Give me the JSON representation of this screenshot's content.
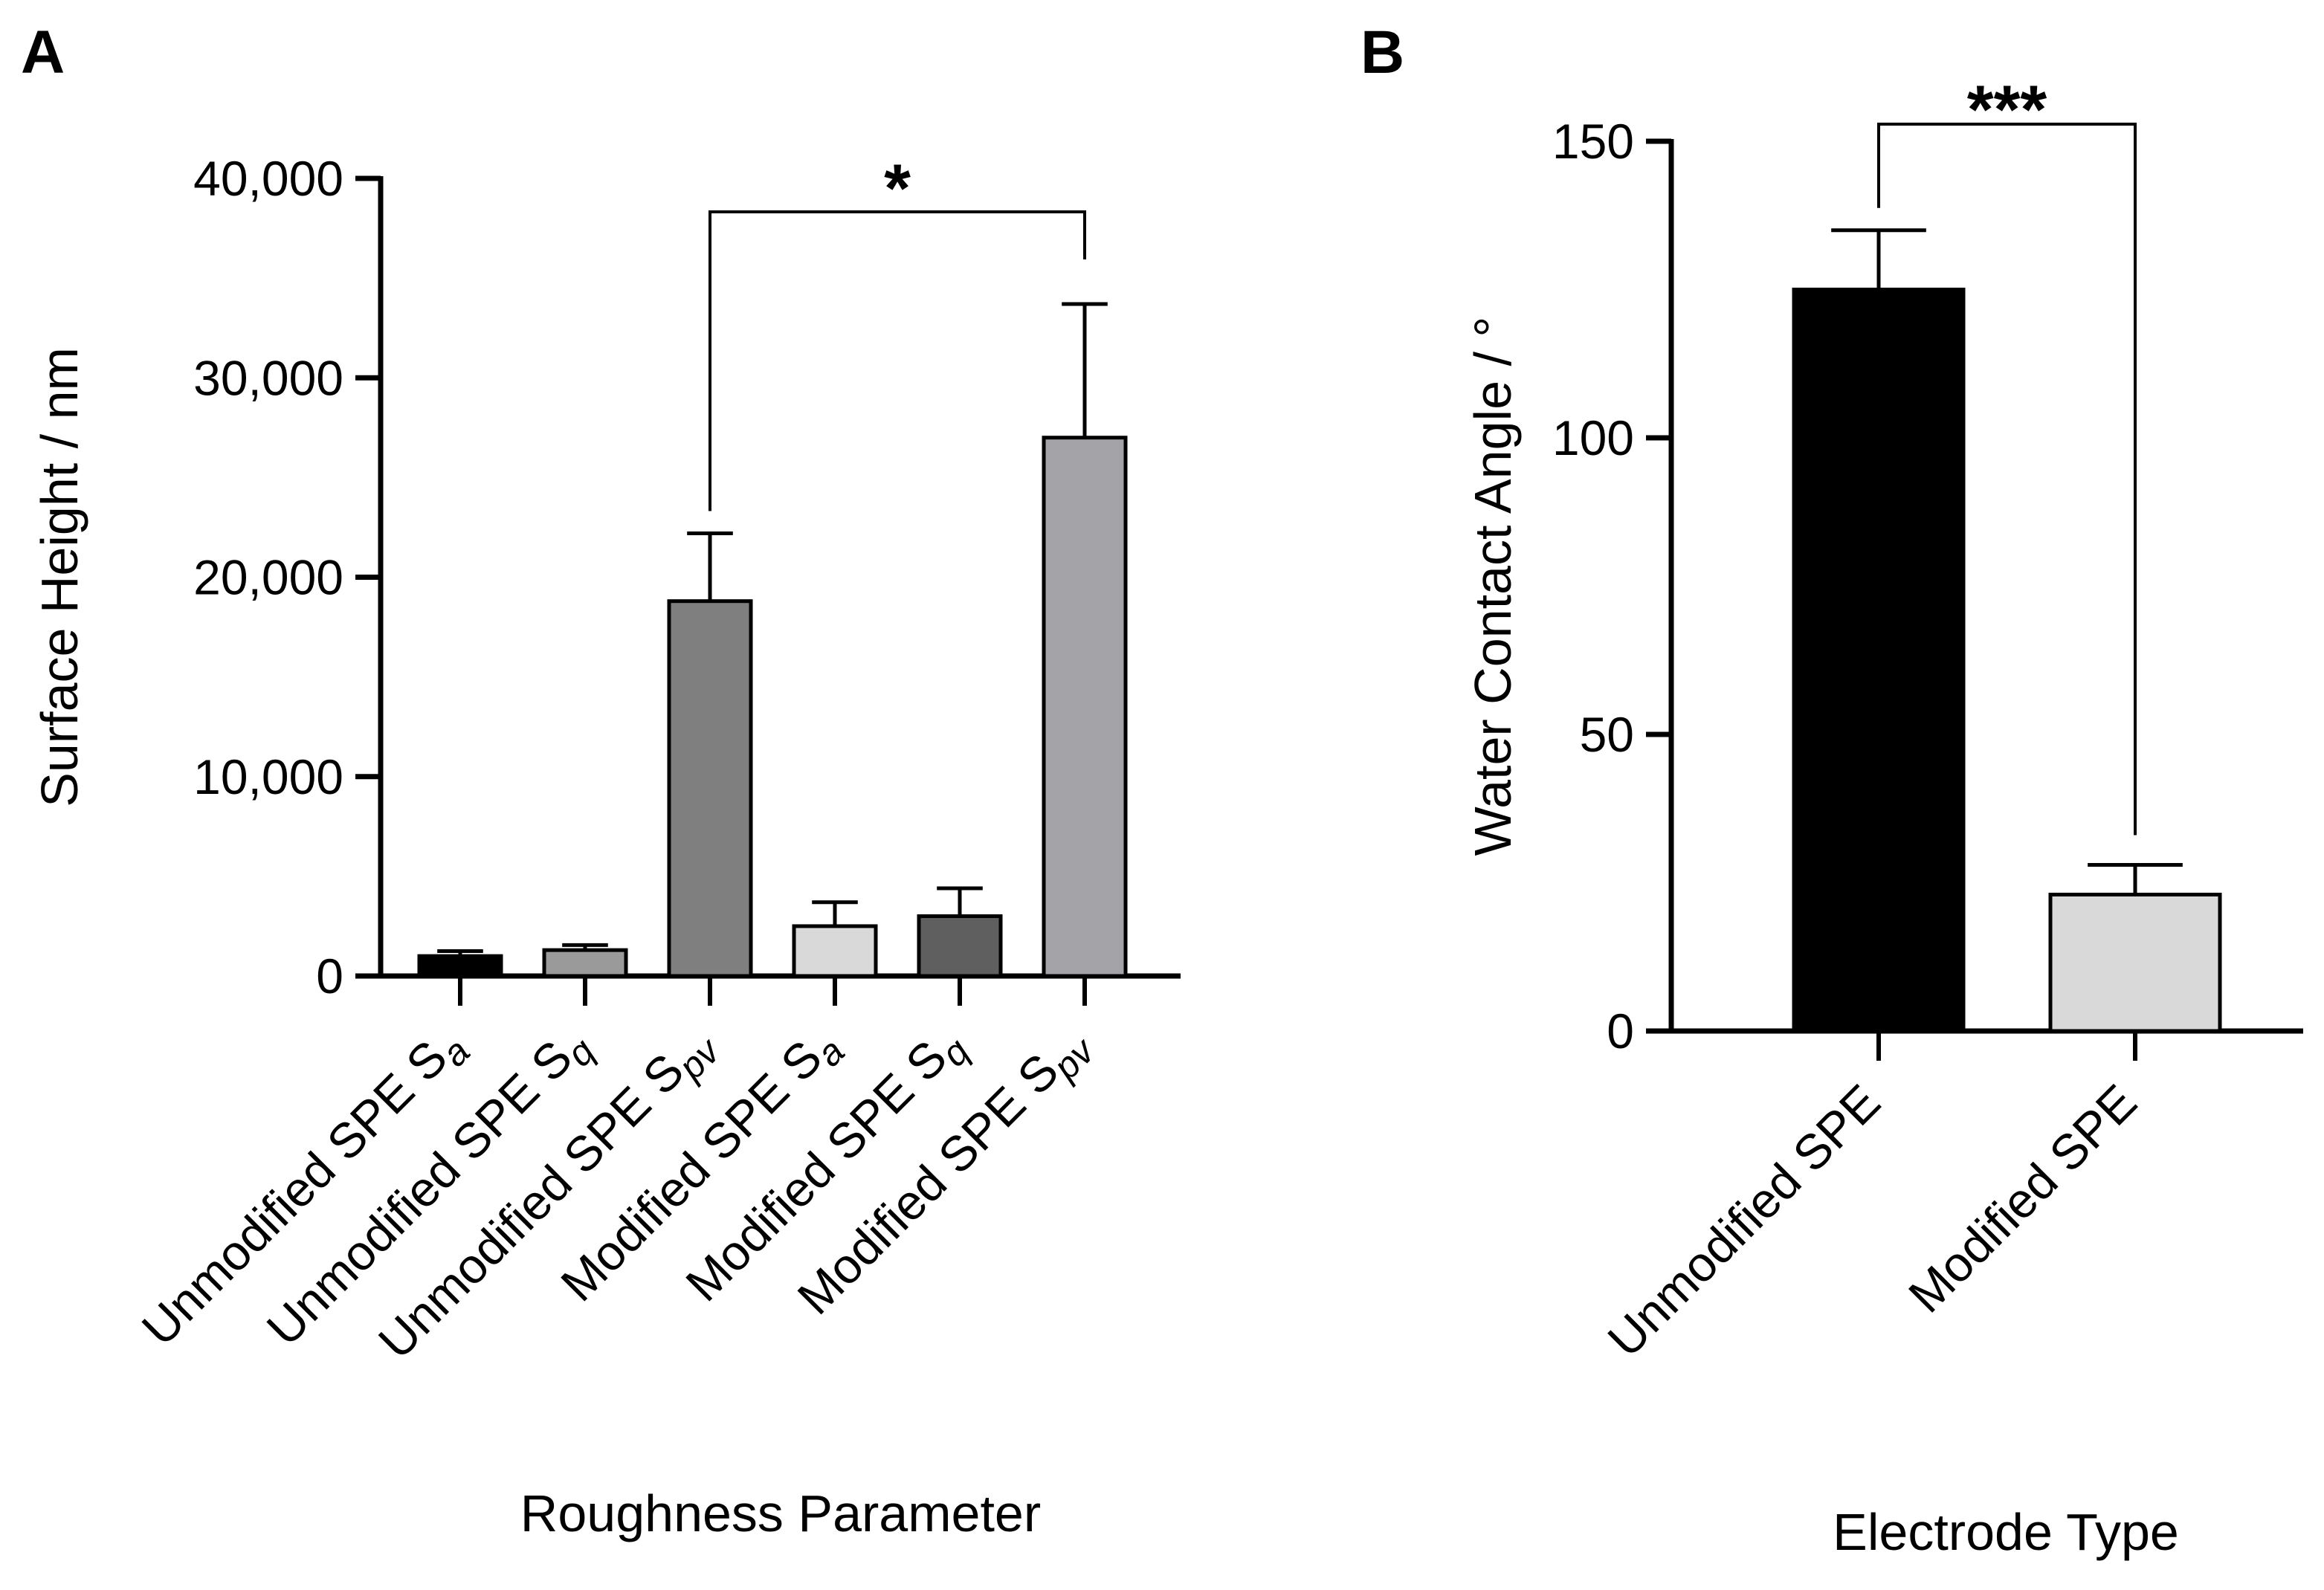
{
  "chart_data": [
    {
      "panel": "A",
      "type": "bar",
      "title": "",
      "xlabel": "Roughness Parameter",
      "ylabel": "Surface Height / nm",
      "ylim": [
        0,
        40000
      ],
      "yticks": [
        0,
        10000,
        20000,
        30000,
        40000
      ],
      "ytick_labels": [
        "0",
        "10,000",
        "20,000",
        "30,000",
        "40,000"
      ],
      "categories": [
        {
          "base": "Unmodified SPE S",
          "sub": "a"
        },
        {
          "base": "Unmodified SPE S",
          "sub": "q"
        },
        {
          "base": "Unmodified SPE S",
          "sub": "pv"
        },
        {
          "base": "Modified SPE S",
          "sub": "a"
        },
        {
          "base": "Modified SPE S",
          "sub": "q"
        },
        {
          "base": "Modified SPE S",
          "sub": "pv"
        }
      ],
      "values": [
        1000,
        1300,
        18800,
        2500,
        3000,
        27000
      ],
      "errors": [
        250,
        250,
        3400,
        1200,
        1400,
        6700
      ],
      "colors": [
        "#000000",
        "#9a9a9a",
        "#7f7f7f",
        "#d9d9d9",
        "#5f5f5f",
        "#a3a3a8"
      ],
      "significance": [
        {
          "from": 2,
          "to": 5,
          "label": "*"
        }
      ]
    },
    {
      "panel": "B",
      "type": "bar",
      "title": "",
      "xlabel": "Electrode Type",
      "ylabel": "Water Contact Angle / °",
      "ylim": [
        0,
        150
      ],
      "yticks": [
        0,
        50,
        100,
        150
      ],
      "ytick_labels": [
        "0",
        "50",
        "100",
        "150"
      ],
      "categories": [
        "Unmodified SPE",
        "Modified SPE"
      ],
      "values": [
        125,
        23
      ],
      "errors": [
        10,
        5
      ],
      "colors": [
        "#000000",
        "#d9d9d9"
      ],
      "significance": [
        {
          "from": 0,
          "to": 1,
          "label": "***"
        }
      ]
    }
  ]
}
